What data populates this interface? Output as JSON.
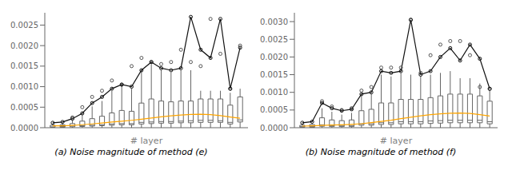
{
  "chart_data": [
    {
      "type": "box",
      "title": "(a) Noise magnitude of method (e)",
      "xlabel": "# layer",
      "x": [
        1,
        2,
        3,
        4,
        5,
        6,
        7,
        8,
        9,
        10,
        11,
        12,
        13,
        14,
        15,
        16,
        17,
        18,
        19,
        20
      ],
      "xlim": [
        0.2,
        20.8
      ],
      "ylim": [
        0,
        0.0028
      ],
      "yticks": [
        {
          "value": 0,
          "label": "0.0000"
        },
        0.0005,
        {
          "value": 0.001,
          "label": "0.0010"
        },
        0.0015,
        {
          "value": 0.002,
          "label": "0.0020"
        },
        0.0025
      ],
      "tick_labels": "y",
      "series": [
        {
          "type": "box",
          "color": "#666666",
          "whisker_low": [
            0,
            0,
            0,
            0,
            0,
            0,
            0,
            0,
            0,
            0,
            0,
            0,
            0,
            0,
            0,
            0,
            0,
            0,
            0,
            0
          ],
          "q1": [
            1e-05,
            1e-05,
            2e-05,
            3e-05,
            4e-05,
            5e-05,
            6e-05,
            7e-05,
            7e-05,
            9e-05,
            0.0001,
            0.00011,
            0.00011,
            0.00012,
            0.00012,
            0.00013,
            0.00013,
            0.00013,
            9e-05,
            0.00014
          ],
          "median": [
            2e-05,
            3e-05,
            4e-05,
            5e-05,
            6e-05,
            7e-05,
            9e-05,
            0.0001,
            0.0001,
            0.00013,
            0.00014,
            0.00015,
            0.00015,
            0.00016,
            0.00017,
            0.00018,
            0.00018,
            0.00017,
            0.00013,
            0.00019
          ],
          "q3": [
            6e-05,
            7e-05,
            0.0001,
            0.00016,
            0.00022,
            0.00028,
            0.00036,
            0.00042,
            0.0004,
            0.0006,
            0.0007,
            0.00065,
            0.00063,
            0.00065,
            0.00065,
            0.0007,
            0.0007,
            0.0007,
            0.00055,
            0.00075
          ],
          "whisker_high": [
            0.0001,
            0.00012,
            0.00018,
            0.00032,
            0.00052,
            0.00065,
            0.0009,
            0.00105,
            0.00095,
            0.0014,
            0.00155,
            0.0014,
            0.00135,
            0.0014,
            0.0014,
            0.0009,
            0.0009,
            0.0009,
            0.00085,
            0.00095
          ]
        },
        {
          "type": "scatter",
          "color": "#555555",
          "marker": "open_circle",
          "x": [
            3,
            4,
            5,
            6,
            7,
            8,
            9,
            10,
            11,
            12,
            13,
            14,
            15,
            16,
            17,
            18,
            19,
            20
          ],
          "values": [
            0.00025,
            0.0005,
            0.00075,
            0.0009,
            0.00115,
            0.00105,
            0.0015,
            0.0017,
            0.0016,
            0.00155,
            0.0016,
            0.0019,
            0.0016,
            0.0015,
            0.00265,
            0.0018,
            0.00095,
            0.002
          ]
        },
        {
          "type": "line",
          "color": "#111111",
          "marker": "open_circle",
          "values": [
            0.00012,
            0.00014,
            0.00022,
            0.00035,
            0.0006,
            0.00075,
            0.00095,
            0.00105,
            0.001,
            0.0014,
            0.0016,
            0.00145,
            0.0014,
            0.00145,
            0.0027,
            0.0019,
            0.0017,
            0.00265,
            0.00095,
            0.00195
          ]
        },
        {
          "type": "line",
          "color": "#FFA500",
          "values": [
            4.5e-05,
            4.75e-05,
            5.75e-05,
            7.25e-05,
            9.25e-05,
            0.000115,
            0.0001375,
            0.0001575,
            0.00018,
            0.0002075,
            0.000235,
            0.000265,
            0.00029,
            0.00031,
            0.000325,
            0.00033,
            0.00032,
            0.000295,
            0.00026,
            0.00023
          ]
        }
      ]
    },
    {
      "type": "box",
      "title": "(b) Noise magnitude of method (f)",
      "xlabel": "# layer",
      "x": [
        1,
        2,
        3,
        4,
        5,
        6,
        7,
        8,
        9,
        10,
        11,
        12,
        13,
        14,
        15,
        16,
        17,
        18,
        19,
        20
      ],
      "xlim": [
        0.2,
        20.8
      ],
      "ylim": [
        0,
        0.00325
      ],
      "yticks": [
        {
          "value": 0,
          "label": "0.0000"
        },
        0.0005,
        {
          "value": 0.001,
          "label": "0.0010"
        },
        0.0015,
        {
          "value": 0.002,
          "label": "0.0020"
        },
        0.0025,
        {
          "value": 0.003,
          "label": "0.0030"
        }
      ],
      "tick_labels": "y",
      "series": [
        {
          "type": "box",
          "color": "#666666",
          "whisker_low": [
            0,
            0,
            0,
            0,
            0,
            0,
            0,
            0,
            0,
            0,
            0,
            0,
            0,
            0,
            0,
            0,
            0,
            0,
            0,
            0
          ],
          "q1": [
            1e-05,
            1e-05,
            4e-05,
            3e-05,
            3e-05,
            3e-05,
            7e-05,
            7e-05,
            9e-05,
            9e-05,
            0.00011,
            0.00011,
            0.00011,
            0.00012,
            0.00013,
            0.00014,
            0.00014,
            0.00014,
            0.00014,
            0.00011
          ],
          "median": [
            3e-05,
            3e-05,
            8e-05,
            6e-05,
            5e-05,
            6e-05,
            0.00011,
            0.00011,
            0.00014,
            0.00014,
            0.00017,
            0.00017,
            0.00017,
            0.00019,
            0.0002,
            0.00021,
            0.00021,
            0.00021,
            0.00021,
            0.00017
          ],
          "q3": [
            7e-05,
            9e-05,
            0.00028,
            0.00022,
            0.0002,
            0.00022,
            0.00048,
            0.00052,
            0.0007,
            0.0007,
            0.0008,
            0.0008,
            0.0008,
            0.00085,
            0.0009,
            0.00095,
            0.00095,
            0.00095,
            0.0009,
            0.00075
          ],
          "whisker_high": [
            0.00011,
            0.00013,
            0.00055,
            0.00045,
            0.00037,
            0.00042,
            0.0009,
            0.00095,
            0.0015,
            0.00145,
            0.00155,
            0.0015,
            0.00145,
            0.0015,
            0.00155,
            0.0016,
            0.0014,
            0.0014,
            0.00125,
            0.00105
          ]
        },
        {
          "type": "scatter",
          "color": "#555555",
          "marker": "open_circle",
          "x": [
            3,
            4,
            5,
            6,
            7,
            8,
            9,
            10,
            11,
            12,
            13,
            14,
            15,
            16,
            17,
            18,
            19,
            20
          ],
          "values": [
            0.00075,
            0.0006,
            0.0005,
            0.00055,
            0.00105,
            0.00115,
            0.0017,
            0.0017,
            0.0017,
            0.00305,
            0.00155,
            0.00205,
            0.00235,
            0.00245,
            0.00245,
            0.00205,
            0.00115,
            0.0011
          ]
        },
        {
          "type": "line",
          "color": "#111111",
          "marker": "open_circle",
          "values": [
            0.00014,
            0.00017,
            0.0007,
            0.00055,
            0.00048,
            0.00052,
            0.00095,
            0.001,
            0.0016,
            0.00155,
            0.0016,
            0.00305,
            0.0015,
            0.0016,
            0.002,
            0.00225,
            0.0019,
            0.00235,
            0.00195,
            0.0011
          ]
        },
        {
          "type": "line",
          "color": "#FFA500",
          "values": [
            4.5e-05,
            5.5e-05,
            6.5e-05,
            7.5e-05,
            8.25e-05,
            9.5e-05,
            0.0001125,
            0.0001425,
            0.0001775,
            0.0002125,
            0.0002575,
            0.0002975,
            0.0003375,
            0.0003675,
            0.0003925,
            0.00041,
            0.000415,
            0.000405,
            0.0003675,
            0.00033
          ]
        }
      ]
    }
  ]
}
